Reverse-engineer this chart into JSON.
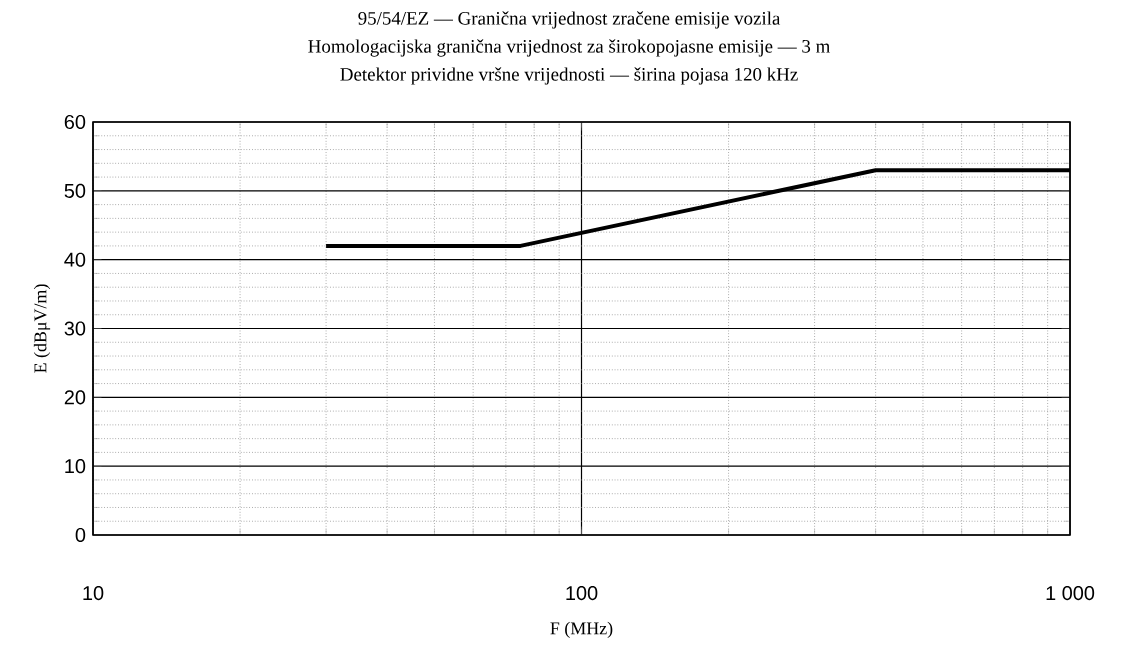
{
  "chart_data": {
    "type": "line",
    "title": "95/54/EZ — Granična vrijednost zračene emisije vozila",
    "subtitle": "Homologacijska granična vrijednost za širokopojasne emisije — 3 m",
    "annotations": [
      "Detektor prividne vršne vrijednosti — širina pojasa 120 kHz"
    ],
    "xlabel": "F (MHz)",
    "ylabel": "E (dBμV/m)",
    "log": "x",
    "x": [
      30,
      75,
      400,
      1000
    ],
    "series": [
      {
        "color": "#000000",
        "values": [
          42,
          42,
          53,
          53
        ]
      }
    ],
    "xlim": [
      10,
      1000
    ],
    "ylim": [
      0,
      60
    ],
    "xticks": [
      10,
      100,
      {
        "value": 1000,
        "label": "1 000"
      }
    ],
    "yticks": [
      0,
      10,
      20,
      30,
      40,
      50,
      60
    ],
    "grid": true
  }
}
